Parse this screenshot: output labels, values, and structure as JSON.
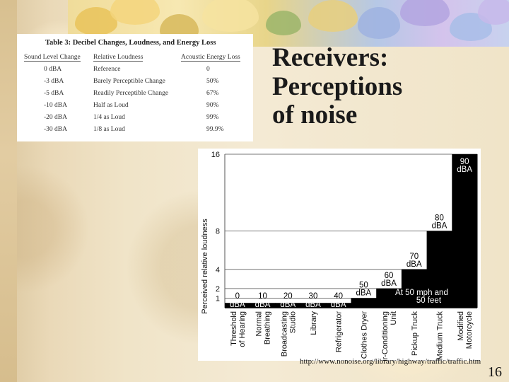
{
  "slide": {
    "heading_lines": [
      "Receivers:",
      "Perceptions",
      "of noise"
    ],
    "source_url": "http://www.nonoise.org/library/highway/traffic/traffic.htm",
    "page_number": "16"
  },
  "table": {
    "title": "Table 3: Decibel Changes, Loudness, and Energy Loss",
    "headers": [
      "Sound Level Change",
      "Relative Loudness",
      "Acoustic Energy Loss"
    ],
    "rows": [
      [
        "0 dBA",
        "Reference",
        "0"
      ],
      [
        "-3 dBA",
        "Barely Perceptible Change",
        "50%"
      ],
      [
        "-5 dBA",
        "Readily Perceptible Change",
        "67%"
      ],
      [
        "-10 dBA",
        "Half as Loud",
        "90%"
      ],
      [
        "-20 dBA",
        "1/4 as Loud",
        "99%"
      ],
      [
        "-30 dBA",
        "1/8 as Loud",
        "99.9%"
      ]
    ]
  },
  "chart_data": {
    "type": "bar",
    "title": "",
    "xlabel": "",
    "ylabel": "Perceived     relative     loudness",
    "yticks": [
      1,
      2,
      4,
      8,
      16
    ],
    "ylim": [
      0,
      16
    ],
    "categories": [
      [
        "Threshold",
        "of Hearing"
      ],
      [
        "Normal",
        "Breathing"
      ],
      [
        "Broadcasting",
        "Studio"
      ],
      [
        "Library"
      ],
      [
        "Refrigerator"
      ],
      [
        "Clothes Dryer"
      ],
      [
        "Air-Conditioning",
        "Unit"
      ],
      [
        "Pickup Truck"
      ],
      [
        "Medium Truck"
      ],
      [
        "Modified",
        "Motorcycle"
      ]
    ],
    "values": [
      0.5,
      0.5,
      0.5,
      0.5,
      0.5,
      1,
      2,
      4,
      8,
      16
    ],
    "bar_labels": [
      [
        "0",
        "dBA"
      ],
      [
        "10",
        "dBA"
      ],
      [
        "20",
        "dBA"
      ],
      [
        "30",
        "dBA"
      ],
      [
        "40",
        "dBA"
      ],
      [
        "50",
        "dBA"
      ],
      [
        "60",
        "dBA"
      ],
      [
        "70",
        "dBA"
      ],
      [
        "80",
        "dBA"
      ],
      [
        "90",
        "dBA"
      ]
    ],
    "annotation": [
      "At 50 mph and",
      "50 feet"
    ],
    "grid": true,
    "colors": {
      "bar": "#000000",
      "label_on_bar": "#ffffff",
      "label": "#000000"
    }
  }
}
